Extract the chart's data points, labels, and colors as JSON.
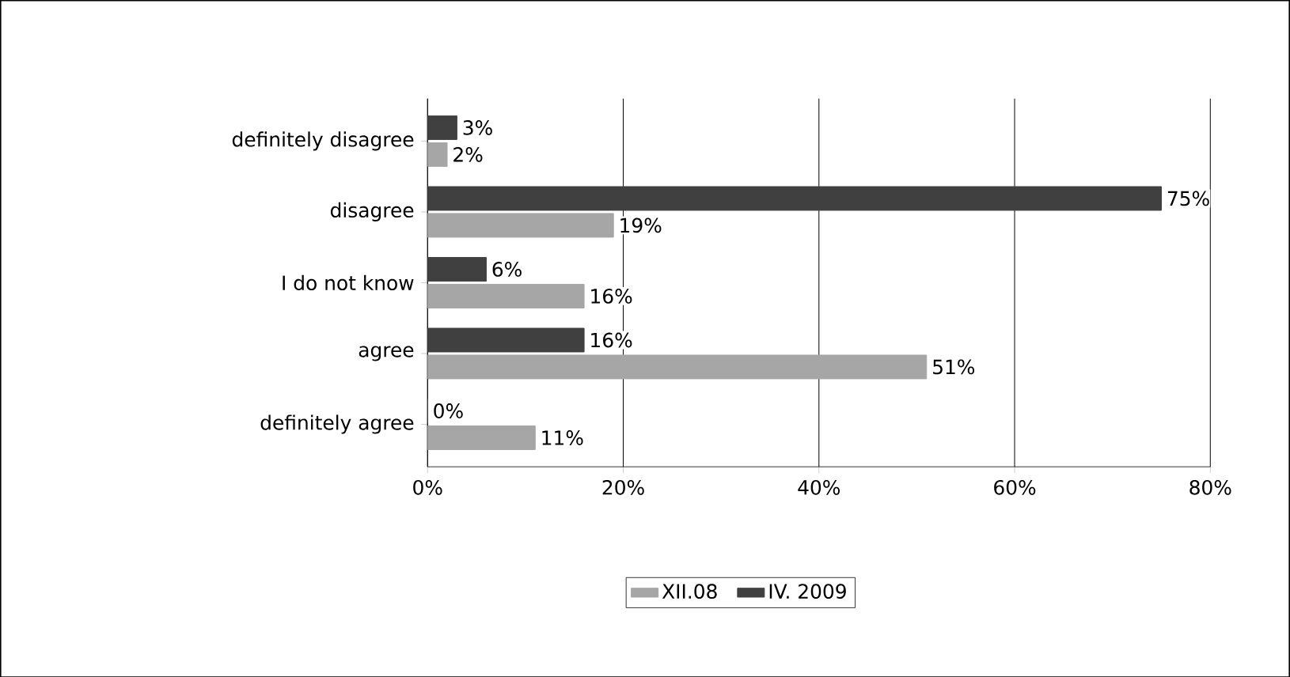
{
  "chart_data": {
    "type": "bar",
    "orientation": "horizontal",
    "categories": [
      "definitely disagree",
      "disagree",
      "I do not know",
      "agree",
      "definitely agree"
    ],
    "series": [
      {
        "name": "XII.08",
        "color": "#a6a6a6",
        "values": [
          2,
          19,
          16,
          51,
          11
        ],
        "value_labels": [
          "2%",
          "19%",
          "16%",
          "51%",
          "11%"
        ]
      },
      {
        "name": "IV. 2009",
        "color": "#404040",
        "values": [
          3,
          75,
          6,
          16,
          0
        ],
        "value_labels": [
          "3%",
          "75%",
          "6%",
          "16%",
          "0%"
        ]
      }
    ],
    "xlim": [
      0,
      80
    ],
    "xticks": [
      {
        "value": 0,
        "label": "0%"
      },
      {
        "value": 20,
        "label": "20%"
      },
      {
        "value": 40,
        "label": "40%"
      },
      {
        "value": 60,
        "label": "60%"
      },
      {
        "value": 80,
        "label": "80%"
      }
    ],
    "grid": "x",
    "legend": "bottom"
  }
}
